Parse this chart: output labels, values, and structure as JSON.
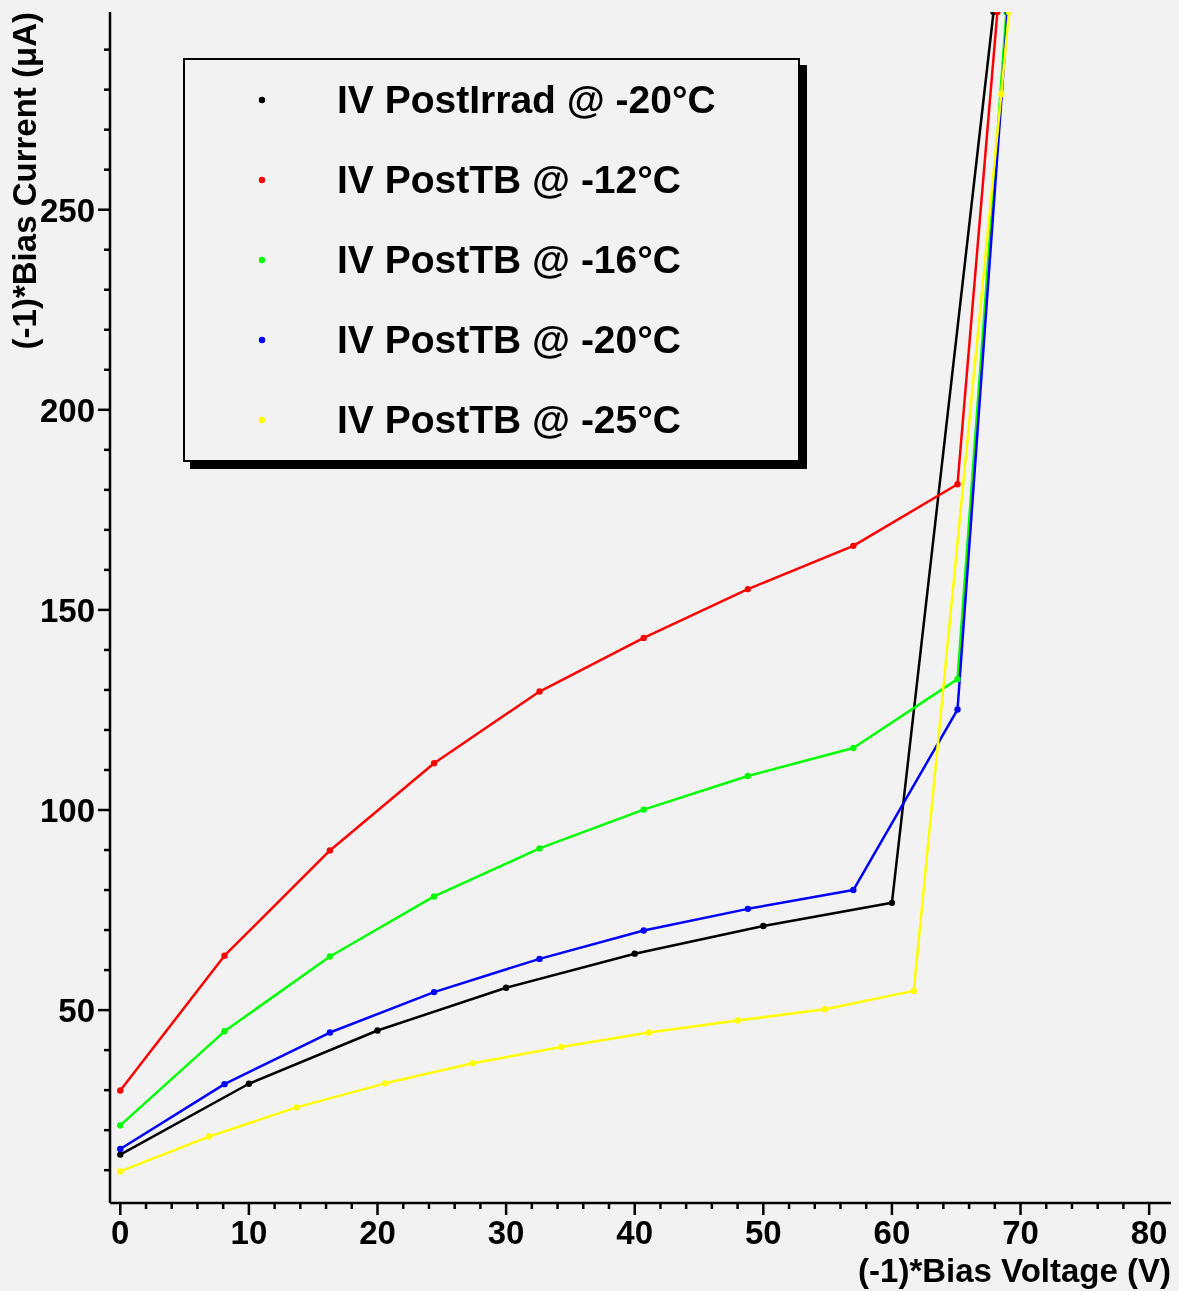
{
  "chart_data": {
    "type": "line",
    "xlabel": "(-1)*Bias Voltage (V)",
    "ylabel": "(-1)*Bias Current (μA)",
    "xlim": [
      -0.8,
      81.7
    ],
    "ylim": [
      1.8,
      299.4
    ],
    "xticks": [
      0,
      {
        "value": 2,
        "label": null
      },
      {
        "value": 4,
        "label": null
      },
      {
        "value": 6,
        "label": null
      },
      {
        "value": 8,
        "label": null
      },
      10,
      {
        "value": 12,
        "label": null
      },
      {
        "value": 14,
        "label": null
      },
      {
        "value": 16,
        "label": null
      },
      {
        "value": 18,
        "label": null
      },
      20,
      {
        "value": 22,
        "label": null
      },
      {
        "value": 24,
        "label": null
      },
      {
        "value": 26,
        "label": null
      },
      {
        "value": 28,
        "label": null
      },
      30,
      {
        "value": 32,
        "label": null
      },
      {
        "value": 34,
        "label": null
      },
      {
        "value": 36,
        "label": null
      },
      {
        "value": 38,
        "label": null
      },
      40,
      {
        "value": 42,
        "label": null
      },
      {
        "value": 44,
        "label": null
      },
      {
        "value": 46,
        "label": null
      },
      {
        "value": 48,
        "label": null
      },
      50,
      {
        "value": 52,
        "label": null
      },
      {
        "value": 54,
        "label": null
      },
      {
        "value": 56,
        "label": null
      },
      {
        "value": 58,
        "label": null
      },
      60,
      {
        "value": 62,
        "label": null
      },
      {
        "value": 64,
        "label": null
      },
      {
        "value": 66,
        "label": null
      },
      {
        "value": 68,
        "label": null
      },
      70,
      {
        "value": 72,
        "label": null
      },
      {
        "value": 74,
        "label": null
      },
      {
        "value": 76,
        "label": null
      },
      {
        "value": 78,
        "label": null
      },
      80
    ],
    "yticks": [
      {
        "value": 10,
        "label": null
      },
      {
        "value": 20,
        "label": null
      },
      {
        "value": 30,
        "label": null
      },
      {
        "value": 40,
        "label": null
      },
      50,
      {
        "value": 60,
        "label": null
      },
      {
        "value": 70,
        "label": null
      },
      {
        "value": 80,
        "label": null
      },
      {
        "value": 90,
        "label": null
      },
      100,
      {
        "value": 110,
        "label": null
      },
      {
        "value": 120,
        "label": null
      },
      {
        "value": 130,
        "label": null
      },
      {
        "value": 140,
        "label": null
      },
      150,
      {
        "value": 160,
        "label": null
      },
      {
        "value": 170,
        "label": null
      },
      {
        "value": 180,
        "label": null
      },
      {
        "value": 190,
        "label": null
      },
      200,
      {
        "value": 210,
        "label": null
      },
      {
        "value": 220,
        "label": null
      },
      {
        "value": 230,
        "label": null
      },
      {
        "value": 240,
        "label": null
      },
      250,
      {
        "value": 260,
        "label": null
      },
      {
        "value": 270,
        "label": null
      },
      {
        "value": 280,
        "label": null
      },
      {
        "value": 290,
        "label": null
      }
    ],
    "legend": "top left",
    "marker": "circle",
    "series": [
      {
        "name": "IV PostIrrad @ -20°C",
        "color": "#000000",
        "x": [
          0,
          10,
          20,
          30,
          40,
          50,
          60,
          67.9
        ],
        "values": [
          13.9,
          31.6,
          44.9,
          55.6,
          64.1,
          71.0,
          76.8,
          299.4
        ]
      },
      {
        "name": "IV PostTB @ -12°C",
        "color": "#ff0000",
        "x": [
          0,
          8.1,
          16.3,
          24.4,
          32.6,
          40.7,
          48.8,
          57.0,
          65.1,
          68.2
        ],
        "values": [
          29.9,
          63.6,
          89.9,
          111.7,
          129.6,
          143.0,
          155.2,
          166.0,
          181.4,
          299.4
        ]
      },
      {
        "name": "IV PostTB @ -16°C",
        "color": "#00ff00",
        "x": [
          0,
          8.1,
          16.3,
          24.4,
          32.6,
          40.7,
          48.8,
          57.0,
          65.1,
          68.9
        ],
        "values": [
          21.2,
          44.7,
          63.4,
          78.4,
          90.4,
          100.1,
          108.5,
          115.5,
          132.7,
          299.4
        ]
      },
      {
        "name": "IV PostTB @ -20°C",
        "color": "#0000ff",
        "x": [
          0,
          8.1,
          16.3,
          24.4,
          32.6,
          40.7,
          48.8,
          57.0,
          65.1,
          69.0
        ],
        "values": [
          15.3,
          31.5,
          44.4,
          54.5,
          62.8,
          69.9,
          75.3,
          80.0,
          125.1,
          299.4
        ]
      },
      {
        "name": "IV PostTB @ -25°C",
        "color": "#ffff00",
        "x": [
          0,
          6.9,
          13.7,
          20.6,
          27.4,
          34.3,
          41.1,
          48.0,
          54.8,
          61.7,
          68.5,
          69.1
        ],
        "values": [
          9.7,
          18.4,
          25.7,
          31.7,
          36.7,
          40.8,
          44.4,
          47.4,
          50.2,
          54.8,
          278.9,
          299.4
        ]
      }
    ]
  }
}
